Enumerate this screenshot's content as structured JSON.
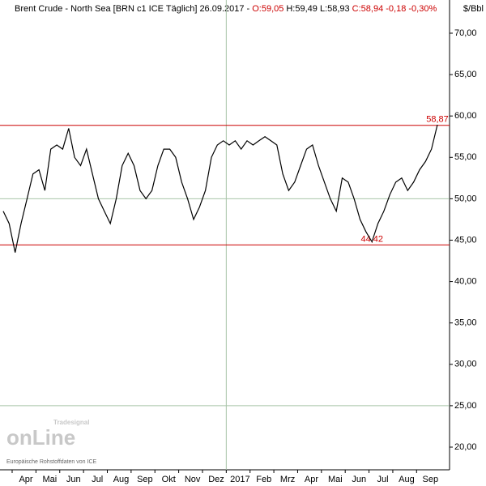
{
  "chart_data": {
    "type": "line",
    "title_parts": [
      {
        "text": "Brent Crude - North Sea [BRN c1 ICE  Täglich] 26.09.2017 -",
        "color": "#000000"
      },
      {
        "text": "O:59,05",
        "color": "#cc0000"
      },
      {
        "text": "H:59,49 L:58,93",
        "color": "#000000"
      },
      {
        "text": "C:58,94 -0,18 -0,30%",
        "color": "#cc0000"
      }
    ],
    "unit_label": "$/Bbl",
    "source": "Europäische Rohstoffdaten von ICE",
    "logo_text": "onLine",
    "logo_brand": "Tradesignal",
    "categories": [
      null,
      null,
      null,
      "Apr",
      null,
      null,
      null,
      "Mai",
      null,
      null,
      null,
      "Jun",
      null,
      null,
      null,
      "Jul",
      null,
      null,
      null,
      "Aug",
      null,
      null,
      null,
      "Sep",
      null,
      null,
      null,
      "Okt",
      null,
      null,
      null,
      "Nov",
      null,
      null,
      null,
      "Dez",
      null,
      null,
      null,
      "2017",
      null,
      null,
      null,
      "Feb",
      null,
      null,
      null,
      "Mrz",
      null,
      null,
      null,
      "Apr",
      null,
      null,
      null,
      "Mai",
      null,
      null,
      null,
      "Jun",
      null,
      null,
      null,
      "Jul",
      null,
      null,
      null,
      "Aug",
      null,
      null,
      null,
      "Sep",
      null,
      null
    ],
    "series": [
      {
        "name": "Brent Crude",
        "color": "#000000",
        "values": [
          48.5,
          47,
          43.5,
          47,
          50,
          53,
          53.5,
          51,
          56,
          56.5,
          56,
          58.5,
          55,
          54,
          56,
          53,
          50,
          48.5,
          47,
          50,
          54,
          55.5,
          54,
          51,
          50,
          51,
          54,
          56,
          56,
          55,
          52,
          50,
          47.5,
          49,
          51,
          55,
          56.5,
          57,
          56.5,
          57,
          56,
          57,
          56.5,
          57,
          57.5,
          57,
          56.5,
          53,
          51,
          52,
          54,
          56,
          56.5,
          54,
          52,
          50,
          48.5,
          52.5,
          52,
          50,
          47.5,
          46,
          44.8,
          47,
          48.5,
          50.5,
          52,
          52.5,
          51,
          52,
          53.5,
          54.5,
          56,
          58.94
        ]
      }
    ],
    "levels": [
      {
        "value": 58.87,
        "label": "58,87",
        "color": "#cc0000"
      },
      {
        "value": 44.42,
        "label": "44,42",
        "color": "#cc0000"
      }
    ],
    "ylim": [
      17.26,
      74.01
    ],
    "yticks": [
      {
        "value": 20,
        "label": "20,00"
      },
      {
        "value": 25,
        "label": "25,00"
      },
      {
        "value": 30,
        "label": "30,00"
      },
      {
        "value": 35,
        "label": "35,00"
      },
      {
        "value": 40,
        "label": "40,00"
      },
      {
        "value": 45,
        "label": "45,00"
      },
      {
        "value": 50,
        "label": "50,00"
      },
      {
        "value": 55,
        "label": "55,00"
      },
      {
        "value": 60,
        "label": "60,00"
      },
      {
        "value": 65,
        "label": "65,00"
      },
      {
        "value": 70,
        "label": "70,00"
      }
    ],
    "grid_values": [
      25,
      50
    ],
    "grid_color": "#a8c4a8"
  }
}
